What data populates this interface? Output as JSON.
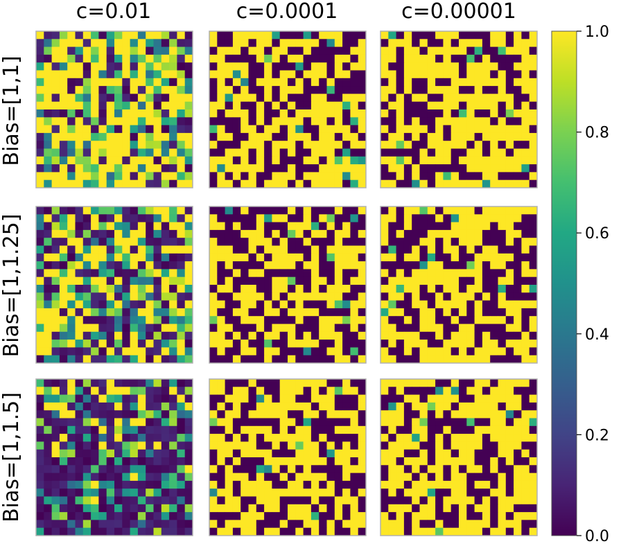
{
  "chart_data": {
    "type": "heatmap",
    "grid_size": 20,
    "columns": [
      "c=0.01",
      "c=0.0001",
      "c=0.00001"
    ],
    "rows": [
      "Bias=[1,1]",
      "Bias=[1,1.25]",
      "Bias=[1,1.5]"
    ],
    "colorbar": {
      "colormap": "viridis",
      "range": [
        0.0,
        1.0
      ],
      "ticks": [
        "0.0",
        "0.2",
        "0.4",
        "0.6",
        "0.8",
        "1.0"
      ]
    },
    "panels": [
      {
        "row": 0,
        "col": 0,
        "mode": "soft",
        "yellow_fraction": 0.45,
        "seed": 11
      },
      {
        "row": 0,
        "col": 1,
        "mode": "binary",
        "yellow_fraction": 0.58,
        "seed": 12
      },
      {
        "row": 0,
        "col": 2,
        "mode": "binary",
        "yellow_fraction": 0.6,
        "seed": 13
      },
      {
        "row": 1,
        "col": 0,
        "mode": "soft",
        "yellow_fraction": 0.32,
        "seed": 21
      },
      {
        "row": 1,
        "col": 1,
        "mode": "binary",
        "yellow_fraction": 0.5,
        "seed": 22
      },
      {
        "row": 1,
        "col": 2,
        "mode": "binary",
        "yellow_fraction": 0.55,
        "seed": 23
      },
      {
        "row": 2,
        "col": 0,
        "mode": "soft",
        "yellow_fraction": 0.2,
        "seed": 31
      },
      {
        "row": 2,
        "col": 1,
        "mode": "binary",
        "yellow_fraction": 0.55,
        "seed": 32
      },
      {
        "row": 2,
        "col": 2,
        "mode": "binary",
        "yellow_fraction": 0.6,
        "seed": 33
      }
    ]
  },
  "colors": {
    "axes_edge": "#b0b0b0",
    "text": "#000000"
  }
}
